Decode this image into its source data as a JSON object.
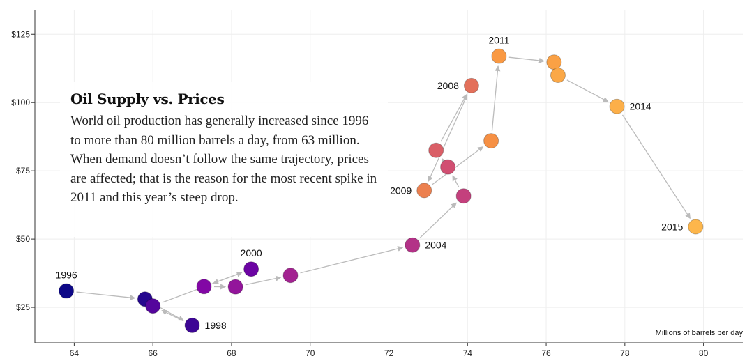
{
  "chart_data": {
    "type": "scatter",
    "title": "Oil Supply vs. Prices",
    "description": "World oil production has generally increased since 1996 to more than 80 million barrels a day, from 63 million. When demand doesn’t follow the same trajectory, prices are affected; that is the reason for the most recent spike in 2011 and this year’s steep drop.",
    "x_unit_label": "Millions of barrels per day",
    "xlim": [
      63,
      81
    ],
    "ylim": [
      12,
      134
    ],
    "x_ticks": [
      64,
      66,
      68,
      70,
      72,
      74,
      76,
      78,
      80
    ],
    "y_ticks": [
      25,
      50,
      75,
      100,
      125
    ],
    "y_tick_labels": [
      "$25",
      "$50",
      "$75",
      "$100",
      "$125"
    ],
    "grid": true,
    "points": [
      {
        "year": 1996,
        "x": 63.8,
        "y": 31.0,
        "label": "1996"
      },
      {
        "year": 1997,
        "x": 65.8,
        "y": 28.0,
        "label": ""
      },
      {
        "year": 1998,
        "x": 67.0,
        "y": 18.4,
        "label": "1998"
      },
      {
        "year": 1999,
        "x": 66.0,
        "y": 25.5,
        "label": ""
      },
      {
        "year": 2000,
        "x": 68.5,
        "y": 39.0,
        "label": "2000"
      },
      {
        "year": 2001,
        "x": 67.3,
        "y": 32.6,
        "label": ""
      },
      {
        "year": 2002,
        "x": 68.1,
        "y": 32.5,
        "label": ""
      },
      {
        "year": 2003,
        "x": 69.5,
        "y": 36.7,
        "label": ""
      },
      {
        "year": 2004,
        "x": 72.6,
        "y": 47.8,
        "label": "2004"
      },
      {
        "year": 2005,
        "x": 73.9,
        "y": 65.8,
        "label": ""
      },
      {
        "year": 2006,
        "x": 73.5,
        "y": 76.4,
        "label": ""
      },
      {
        "year": 2007,
        "x": 73.2,
        "y": 82.5,
        "label": ""
      },
      {
        "year": 2008,
        "x": 74.1,
        "y": 106.2,
        "label": "2008"
      },
      {
        "year": 2009,
        "x": 72.9,
        "y": 67.8,
        "label": "2009"
      },
      {
        "year": 2010,
        "x": 74.6,
        "y": 86.0,
        "label": ""
      },
      {
        "year": 2011,
        "x": 74.8,
        "y": 117.0,
        "label": "2011"
      },
      {
        "year": 2012,
        "x": 76.2,
        "y": 114.8,
        "label": ""
      },
      {
        "year": 2013,
        "x": 76.3,
        "y": 110.0,
        "label": ""
      },
      {
        "year": 2014,
        "x": 77.8,
        "y": 98.6,
        "label": "2014"
      },
      {
        "year": 2015,
        "x": 79.8,
        "y": 54.5,
        "label": "2015"
      }
    ],
    "label_placement": {
      "1996": "above",
      "1998": "right",
      "2000": "above",
      "2004": "right",
      "2008": "left",
      "2009": "left",
      "2011": "above",
      "2014": "right",
      "2015": "left"
    },
    "colors": {
      "start": "#0d0887",
      "mid": "#7e03a8",
      "late": "#cc4778",
      "late2": "#f89441",
      "end": "#fdb64b",
      "arrow": "#bbbbbb",
      "grid": "#eeeeee",
      "axis": "#333333"
    }
  }
}
